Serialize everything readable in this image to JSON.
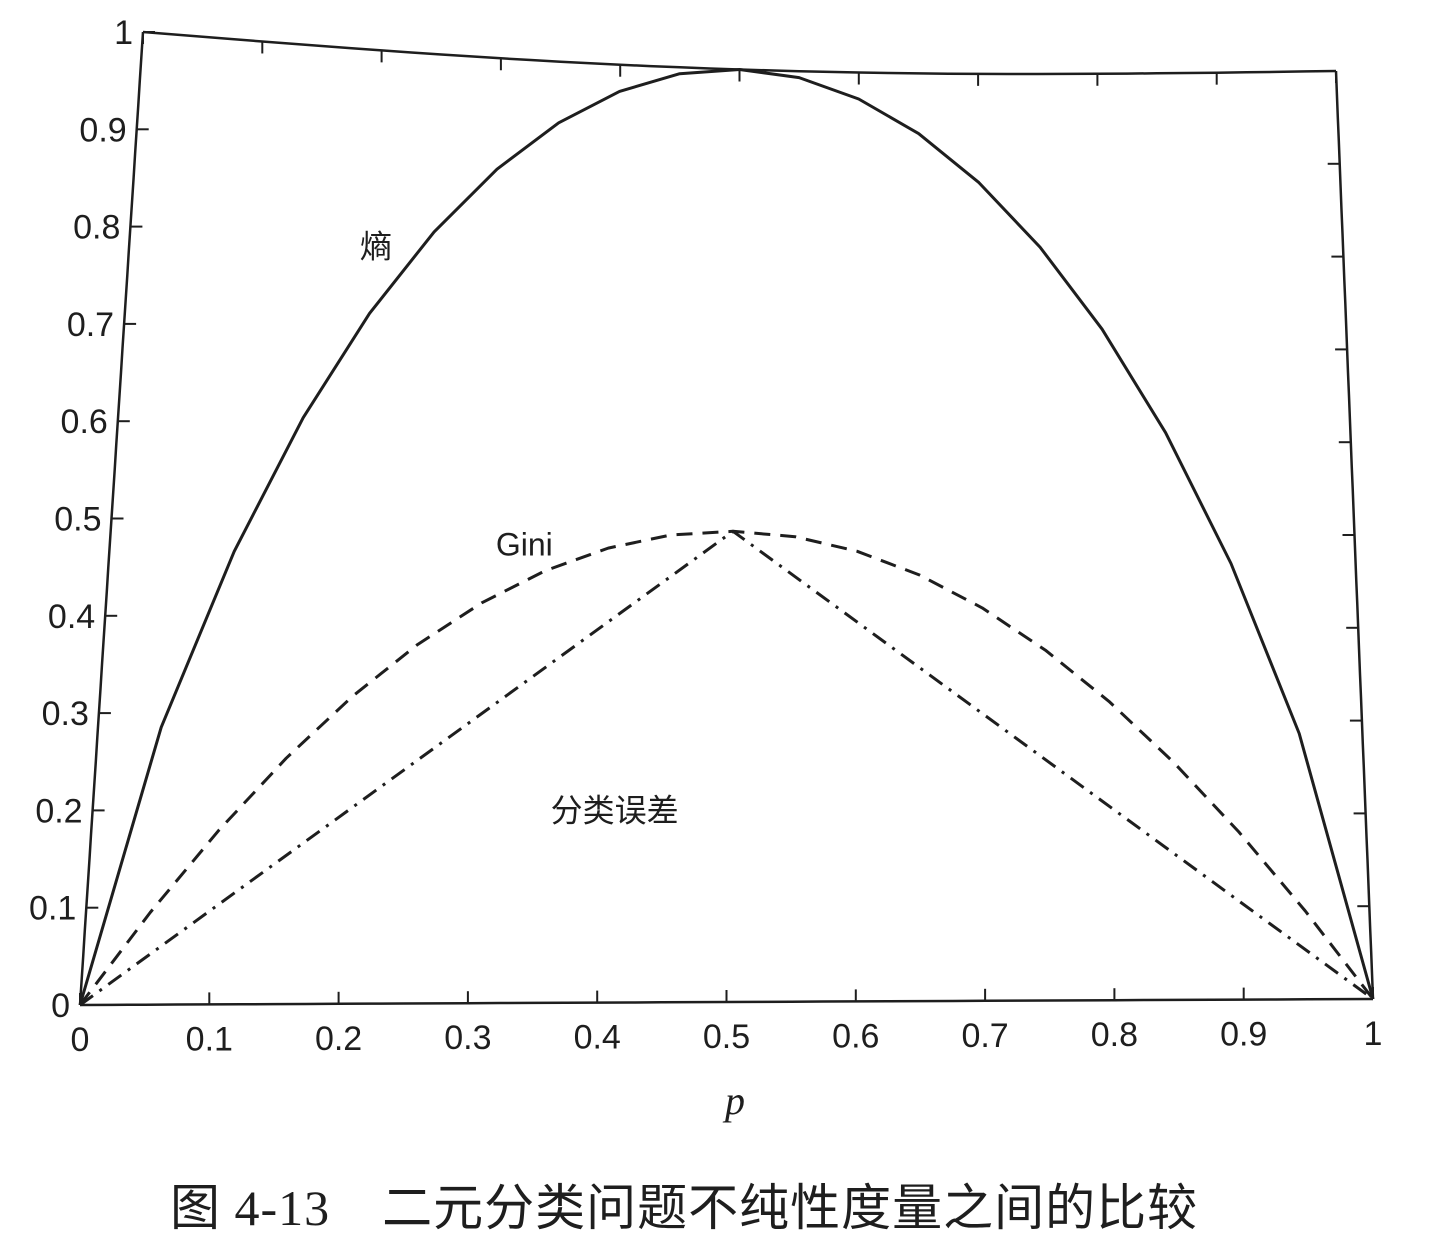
{
  "figure": {
    "caption_number": "图 4-13",
    "caption_text": "二元分类问题不纯性度量之间的比较"
  },
  "chart_data": {
    "type": "line",
    "title": "",
    "xlabel": "p",
    "ylabel": "",
    "xlim": [
      0,
      1
    ],
    "ylim": [
      0,
      1
    ],
    "x_ticks": [
      "0",
      "0.1",
      "0.2",
      "0.3",
      "0.4",
      "0.5",
      "0.6",
      "0.7",
      "0.8",
      "0.9",
      "1"
    ],
    "y_ticks": [
      "0",
      "0.1",
      "0.2",
      "0.3",
      "0.4",
      "0.5",
      "0.6",
      "0.7",
      "0.8",
      "0.9",
      "1"
    ],
    "grid": false,
    "series": [
      {
        "name": "熵",
        "style": "solid",
        "color": "#1e1e1e",
        "x": [
          0,
          0.05,
          0.1,
          0.15,
          0.2,
          0.25,
          0.3,
          0.35,
          0.4,
          0.45,
          0.5,
          0.55,
          0.6,
          0.65,
          0.7,
          0.75,
          0.8,
          0.85,
          0.9,
          0.95,
          1
        ],
        "y": [
          0,
          0.286,
          0.469,
          0.61,
          0.722,
          0.811,
          0.881,
          0.934,
          0.971,
          0.993,
          1,
          0.993,
          0.971,
          0.934,
          0.881,
          0.811,
          0.722,
          0.61,
          0.469,
          0.286,
          0
        ]
      },
      {
        "name": "Gini",
        "style": "dashed",
        "color": "#1e1e1e",
        "x": [
          0,
          0.05,
          0.1,
          0.15,
          0.2,
          0.25,
          0.3,
          0.35,
          0.4,
          0.45,
          0.5,
          0.55,
          0.6,
          0.65,
          0.7,
          0.75,
          0.8,
          0.85,
          0.9,
          0.95,
          1
        ],
        "y": [
          0,
          0.095,
          0.18,
          0.255,
          0.32,
          0.375,
          0.42,
          0.455,
          0.48,
          0.495,
          0.5,
          0.495,
          0.48,
          0.455,
          0.42,
          0.375,
          0.32,
          0.255,
          0.18,
          0.095,
          0
        ]
      },
      {
        "name": "分类误差",
        "style": "dash-dot",
        "color": "#1e1e1e",
        "x": [
          0,
          0.5,
          1
        ],
        "y": [
          0,
          0.5,
          0
        ]
      }
    ],
    "annotations": [
      {
        "text": "熵",
        "x": 0.19,
        "y": 0.78
      },
      {
        "text": "Gini",
        "x": 0.31,
        "y": 0.47
      },
      {
        "text": "分类误差",
        "x": 0.36,
        "y": 0.19
      }
    ]
  }
}
